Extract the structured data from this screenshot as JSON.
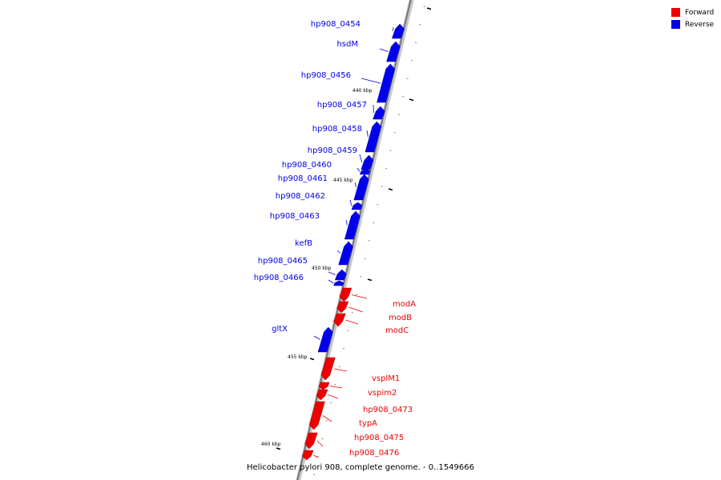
{
  "legend": {
    "forward_label": "Forward",
    "reverse_label": "Reverse",
    "forward_color": "#ee0000",
    "reverse_color": "#0000ee"
  },
  "caption": "Helicobacter pylori 908, complete genome. - 0..1549666",
  "ticks": [
    "440 kbp",
    "445 kbp",
    "450 kbp",
    "455 kbp",
    "460 kbp"
  ],
  "genes": [
    {
      "name": "hp908_0454",
      "strand": "reverse"
    },
    {
      "name": "hsdM",
      "strand": "reverse"
    },
    {
      "name": "hp908_0456",
      "strand": "reverse"
    },
    {
      "name": "hp908_0457",
      "strand": "reverse"
    },
    {
      "name": "hp908_0458",
      "strand": "reverse"
    },
    {
      "name": "hp908_0459",
      "strand": "reverse"
    },
    {
      "name": "hp908_0460",
      "strand": "reverse"
    },
    {
      "name": "hp908_0461",
      "strand": "reverse"
    },
    {
      "name": "hp908_0462",
      "strand": "reverse"
    },
    {
      "name": "hp908_0463",
      "strand": "reverse"
    },
    {
      "name": "kefB",
      "strand": "reverse"
    },
    {
      "name": "hp908_0465",
      "strand": "reverse"
    },
    {
      "name": "hp908_0466",
      "strand": "reverse"
    },
    {
      "name": "modA",
      "strand": "forward"
    },
    {
      "name": "modB",
      "strand": "forward"
    },
    {
      "name": "modC",
      "strand": "forward"
    },
    {
      "name": "gltX",
      "strand": "reverse"
    },
    {
      "name": "vsplM1",
      "strand": "forward"
    },
    {
      "name": "vspim2",
      "strand": "forward"
    },
    {
      "name": "hp908_0473",
      "strand": "forward"
    },
    {
      "name": "typA",
      "strand": "forward"
    },
    {
      "name": "hp908_0475",
      "strand": "forward"
    },
    {
      "name": "hp908_0476",
      "strand": "forward"
    }
  ]
}
